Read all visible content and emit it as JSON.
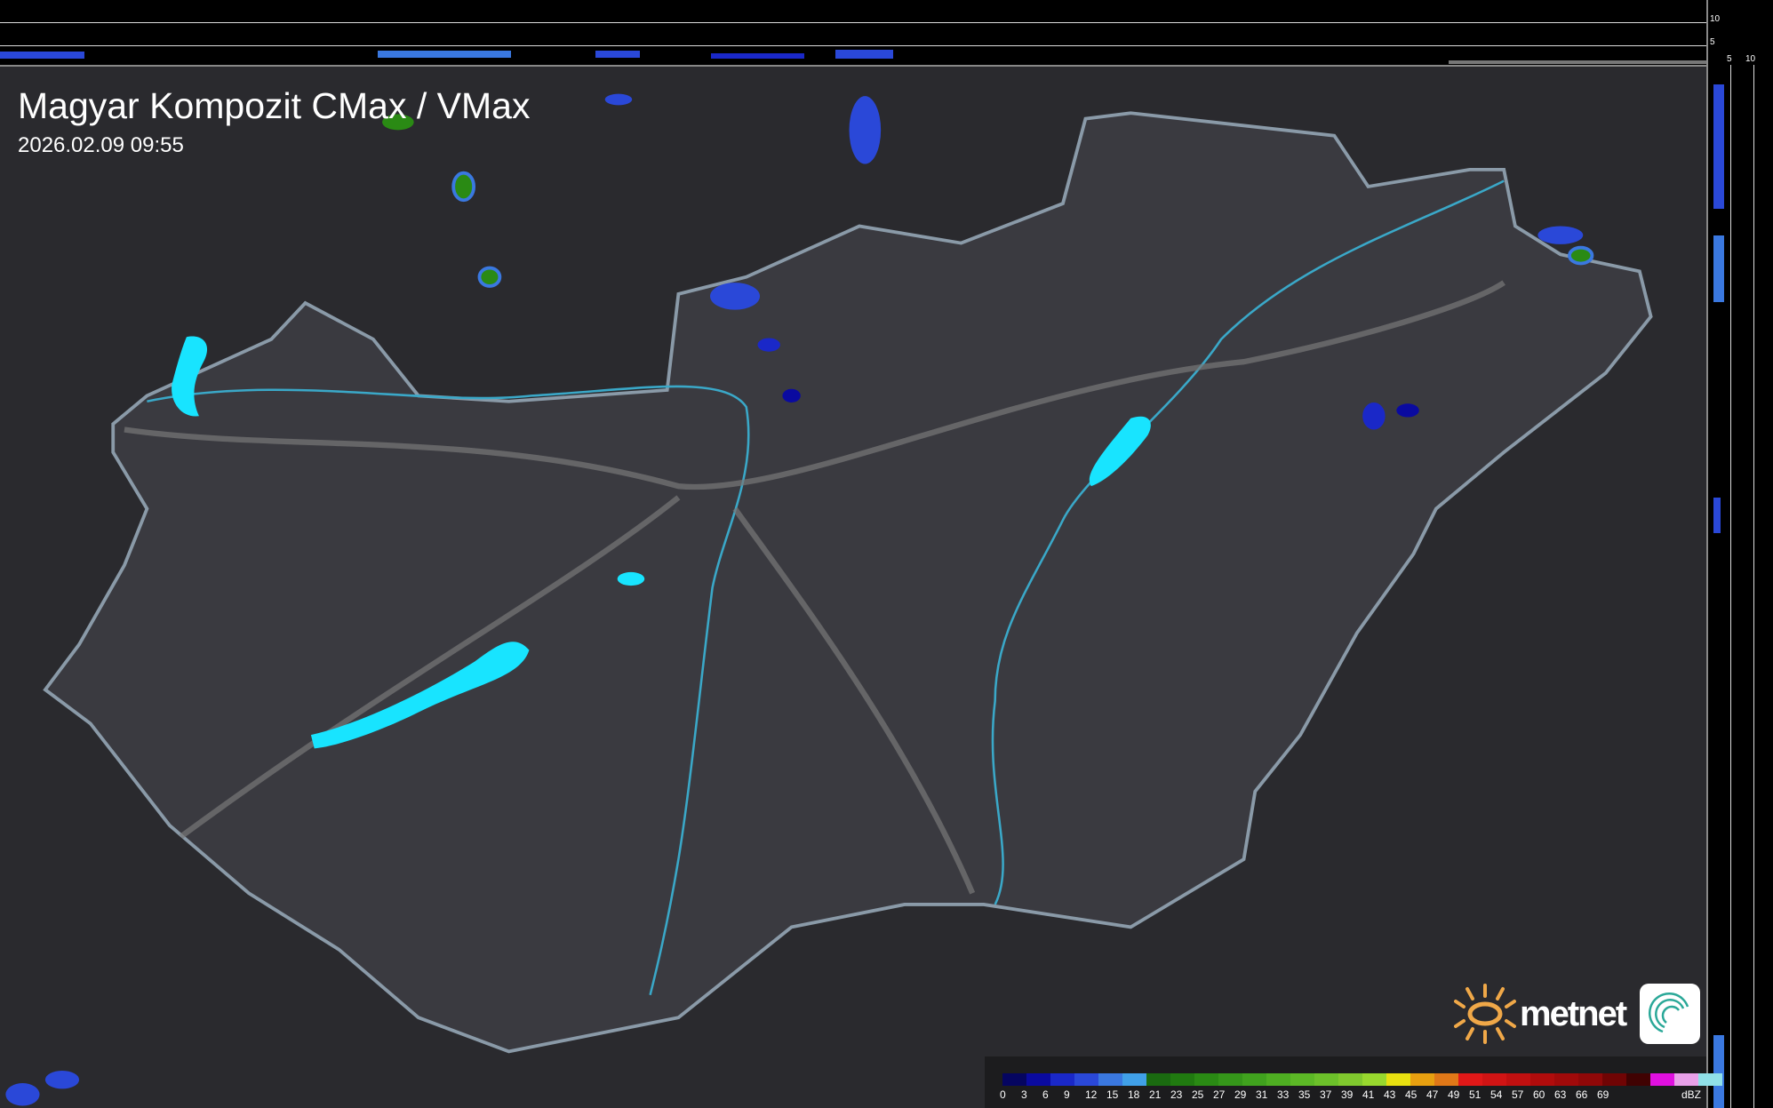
{
  "header": {
    "title": "Magyar Kompozit CMax / VMax",
    "timestamp": "2026.02.09 09:55"
  },
  "profile_scale": {
    "top_ticks": [
      "10",
      "5"
    ],
    "right_ticks": [
      "5",
      "10"
    ]
  },
  "legend": {
    "unit": "dBZ",
    "labels": [
      "0",
      "3",
      "6",
      "9",
      "12",
      "15",
      "18",
      "21",
      "23",
      "25",
      "27",
      "29",
      "31",
      "33",
      "35",
      "37",
      "39",
      "41",
      "43",
      "45",
      "47",
      "49",
      "51",
      "54",
      "57",
      "60",
      "63",
      "66",
      "69"
    ],
    "colors": [
      "#050560",
      "#0a0aa0",
      "#1a28c8",
      "#2a48d8",
      "#3a78e0",
      "#40a0e8",
      "#1a6a10",
      "#207a10",
      "#2a8a14",
      "#35961a",
      "#40a21e",
      "#4eae22",
      "#5cb826",
      "#6cc02a",
      "#80c82e",
      "#98d82e",
      "#e8e010",
      "#e8a010",
      "#e07818",
      "#e01818",
      "#d01414",
      "#c01010",
      "#b00c0c",
      "#a00a0a",
      "#900808",
      "#700404",
      "#400202",
      "#e010e0",
      "#e8a0e8",
      "#90e0e8"
    ]
  },
  "logo": {
    "brand": "metnet",
    "sun_color": "#f0a848",
    "icon_color": "#2aa898"
  },
  "map": {
    "country_fill": "#3a3a40",
    "border_color": "#8a9aa8",
    "lake_color": "#18e4ff",
    "river_color": "#3aa8c8"
  }
}
